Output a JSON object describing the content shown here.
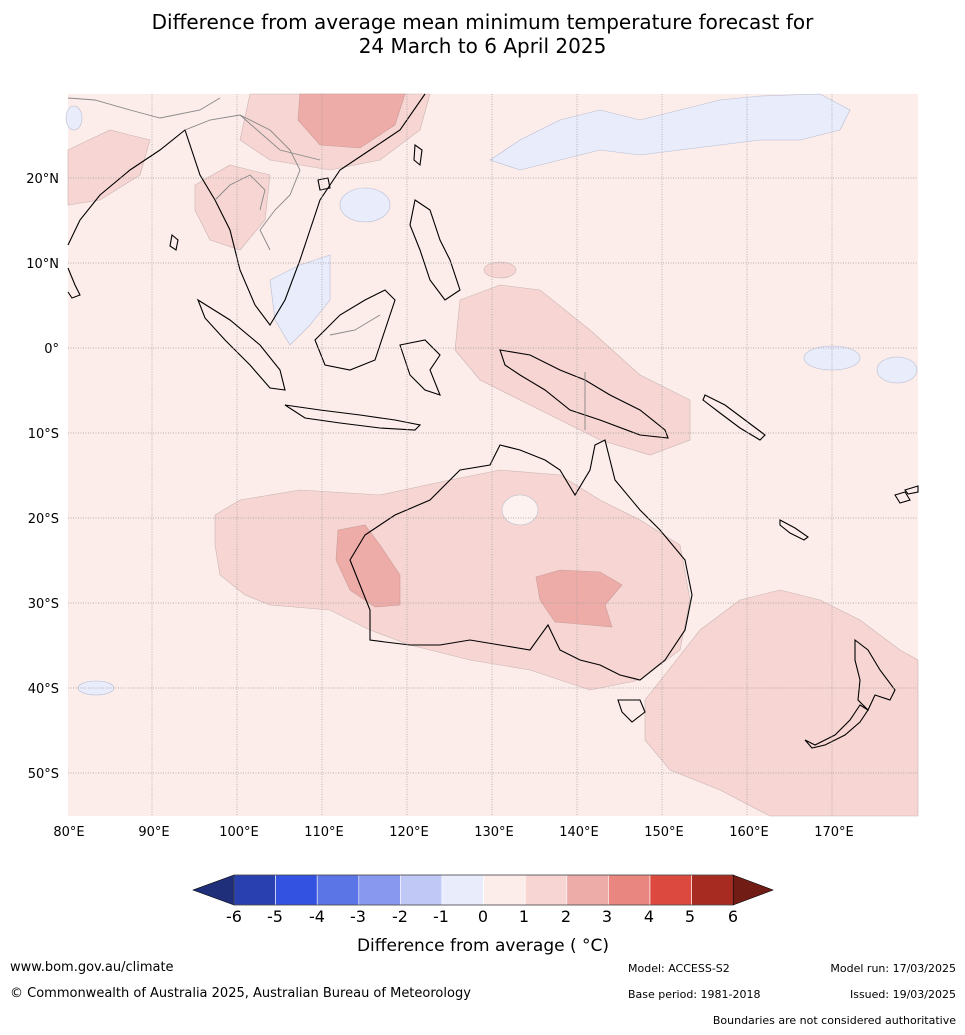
{
  "title": {
    "line1": "Difference from average mean minimum temperature forecast for",
    "line2": "24 March to 6 April 2025"
  },
  "axes": {
    "lon_ticks": [
      "80°E",
      "90°E",
      "100°E",
      "110°E",
      "120°E",
      "130°E",
      "140°E",
      "150°E",
      "160°E",
      "170°E"
    ],
    "lat_ticks": [
      "20°N",
      "10°N",
      "0°",
      "10°S",
      "20°S",
      "30°S",
      "40°S",
      "50°S"
    ]
  },
  "colorbar": {
    "label": "Difference from average ( °C)",
    "ticks": [
      "-6",
      "-5",
      "-4",
      "-3",
      "-2",
      "-1",
      "0",
      "1",
      "2",
      "3",
      "4",
      "5",
      "6"
    ],
    "colors": [
      "#1f2f7a",
      "#2840b0",
      "#3352e2",
      "#5b75e6",
      "#8898ee",
      "#c0c8f5",
      "#e8ecfb",
      "#fcecea",
      "#f6d5d2",
      "#eeaca8",
      "#e8867f",
      "#dc4a3f",
      "#a82b22",
      "#721c16"
    ]
  },
  "footer": {
    "url": "www.bom.gov.au/climate",
    "copyright": "© Commonwealth of Australia 2025, Australian Bureau of Meteorology",
    "model": "Model: ACCESS-S2",
    "base_period": "Base period: 1981-2018",
    "model_run": "Model run: 17/03/2025",
    "issued": "Issued: 19/03/2025",
    "disclaimer": "Boundaries are not considered authoritative"
  }
}
